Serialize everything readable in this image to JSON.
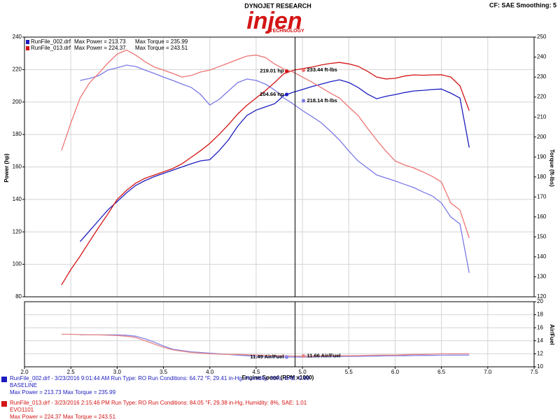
{
  "header": {
    "brand": "DYNOJET RESEARCH",
    "logo": "injen",
    "logo_sub": "TECHNOLOGY",
    "settings": "CF: SAE  Smoothing: 5"
  },
  "chart_data": [
    {
      "type": "line",
      "y_label": "Power (hp)",
      "y2_label": "Torque (ft-lbs)",
      "xlim": [
        2,
        7.5
      ],
      "ylim": [
        80,
        240
      ],
      "yticks": [
        80,
        100,
        120,
        140,
        160,
        180,
        200,
        220,
        240
      ],
      "y2lim": [
        120,
        250
      ],
      "y2ticks": [
        120,
        130,
        140,
        150,
        160,
        170,
        180,
        190,
        200,
        210,
        220,
        230,
        240,
        250
      ],
      "grid": true,
      "x": [
        2.4,
        2.5,
        2.6,
        2.7,
        2.8,
        2.9,
        3.0,
        3.1,
        3.2,
        3.3,
        3.4,
        3.5,
        3.6,
        3.7,
        3.8,
        3.9,
        4.0,
        4.1,
        4.2,
        4.3,
        4.4,
        4.5,
        4.6,
        4.7,
        4.8,
        4.9,
        5.0,
        5.1,
        5.2,
        5.3,
        5.4,
        5.5,
        5.6,
        5.7,
        5.8,
        5.9,
        6.0,
        6.1,
        6.2,
        6.3,
        6.4,
        6.5,
        6.6,
        6.7,
        6.8
      ],
      "series": [
        {
          "name": "RunFile_002.drf",
          "max_label": "Max Power = 213.73",
          "color": "#1c1cc0",
          "axis": "y",
          "values": [
            null,
            null,
            114,
            120.5,
            127,
            133.5,
            138.7,
            144,
            148.6,
            151.6,
            154,
            156,
            158,
            160,
            162,
            163.7,
            164.5,
            170,
            176.6,
            185,
            191.7,
            195,
            197,
            199,
            204,
            206,
            207.7,
            209.5,
            211,
            212.5,
            213.7,
            212,
            209,
            205,
            202,
            203.5,
            204.6,
            205.8,
            206.8,
            207.2,
            207.7,
            208,
            205.5,
            202.5,
            172
          ]
        },
        {
          "name": "RunFile_002.drf",
          "max_label": "Max Torque = 235.99",
          "color": "#7a7ae6",
          "axis": "y2",
          "values": [
            null,
            null,
            228.3,
            229.3,
            230.7,
            233.5,
            234.6,
            236,
            235.3,
            233.5,
            231.8,
            230,
            228.3,
            226.5,
            224.8,
            221.3,
            216,
            218.8,
            223,
            227.2,
            229,
            228.3,
            226.5,
            223.5,
            219.5,
            216.5,
            213.2,
            210.3,
            207.2,
            203,
            198.5,
            193,
            188,
            184.5,
            181,
            179.5,
            178,
            176.3,
            174.7,
            172.5,
            170.5,
            167,
            160,
            156.4,
            132
          ]
        },
        {
          "name": "RunFile_013.drf",
          "max_label": "Max Power = 224.37",
          "color": "#d41414",
          "axis": "y",
          "values": [
            87.3,
            96.8,
            105,
            114,
            122.7,
            131,
            140,
            145.5,
            150,
            153,
            155,
            157,
            159,
            162,
            166,
            170,
            174.5,
            180,
            186,
            192.5,
            198,
            202.5,
            207,
            212,
            217.5,
            219.5,
            220.6,
            221.5,
            222.8,
            223.8,
            224.4,
            223.5,
            222,
            219,
            215.4,
            214.2,
            214.6,
            216,
            216.7,
            216.5,
            216.7,
            216.8,
            215.4,
            210,
            194.7
          ]
        },
        {
          "name": "RunFile_013.drf",
          "max_label": "Max Torque = 243.51",
          "color": "#ee7474",
          "axis": "y2",
          "values": [
            193.2,
            207,
            219.5,
            227,
            231.8,
            237,
            241.5,
            243.5,
            241,
            237.7,
            235,
            233.5,
            231.8,
            230,
            230.8,
            232.5,
            233.5,
            235.2,
            237,
            238.8,
            240.5,
            241,
            239.8,
            236.5,
            234,
            232.5,
            230,
            227.5,
            224.8,
            222,
            219.5,
            215,
            210.8,
            204.5,
            198.5,
            193,
            188,
            186,
            184.5,
            182.5,
            180.3,
            177.5,
            167,
            163.4,
            149.4
          ]
        }
      ],
      "cursor": {
        "x": 4.92,
        "readouts": [
          {
            "label": "219.01 hp",
            "value": 219.01,
            "axis": "y",
            "color": "#d41414"
          },
          {
            "label": "233.44 ft-lbs",
            "value": 233.44,
            "axis": "y2",
            "color": "#ee7474"
          },
          {
            "label": "204.66 hp",
            "value": 204.66,
            "axis": "y",
            "color": "#1c1cc0"
          },
          {
            "label": "218.14 ft-lbs",
            "value": 218.14,
            "axis": "y2",
            "color": "#7a7ae6"
          }
        ]
      }
    },
    {
      "type": "line",
      "x_label": "Engine Speed (RPM x1000)",
      "y2_label": "Air/Fuel",
      "xlim": [
        2,
        7.5
      ],
      "xticks": [
        {
          "value": 2,
          "label": "2.0"
        },
        2.5,
        {
          "value": 3,
          "label": "3.0"
        },
        3.5,
        {
          "value": 4,
          "label": "4.0"
        },
        4.5,
        {
          "value": 5,
          "label": "5.0"
        },
        5.5,
        {
          "value": 6,
          "label": "6.0"
        },
        6.5,
        {
          "value": 7,
          "label": "7.0"
        },
        7.5
      ],
      "y2lim": [
        10,
        20
      ],
      "y2ticks": [
        10,
        12,
        14,
        16,
        18,
        20
      ],
      "grid": true,
      "x": [
        2.4,
        2.5,
        2.6,
        2.7,
        2.8,
        2.9,
        3.0,
        3.1,
        3.2,
        3.3,
        3.4,
        3.5,
        3.6,
        3.7,
        3.8,
        3.9,
        4.0,
        4.1,
        4.2,
        4.3,
        4.4,
        4.5,
        4.6,
        4.7,
        4.8,
        4.9,
        5.0,
        5.1,
        5.2,
        5.3,
        5.4,
        5.5,
        5.6,
        5.7,
        5.8,
        5.9,
        6.0,
        6.1,
        6.2,
        6.3,
        6.4,
        6.5,
        6.6,
        6.7,
        6.8
      ],
      "series": [
        {
          "name": "RunFile_002.drf",
          "color": "#8484e6",
          "axis": "y2",
          "values": [
            null,
            null,
            14.9,
            14.9,
            14.9,
            14.9,
            14.9,
            14.85,
            14.7,
            14.3,
            13.8,
            13.2,
            12.7,
            12.5,
            12.3,
            12.2,
            12.1,
            12.0,
            11.9,
            11.8,
            11.7,
            11.6,
            11.55,
            11.5,
            11.49,
            11.5,
            11.5,
            11.52,
            11.55,
            11.55,
            11.58,
            11.6,
            11.6,
            11.62,
            11.65,
            11.68,
            11.7,
            11.7,
            11.72,
            11.75,
            11.75,
            11.78,
            11.8,
            11.8,
            11.8
          ]
        },
        {
          "name": "RunFile_013.drf",
          "color": "#e68484",
          "axis": "y2",
          "values": [
            15.0,
            15.0,
            14.95,
            14.9,
            14.9,
            14.85,
            14.8,
            14.7,
            14.5,
            14.0,
            13.5,
            13.0,
            12.6,
            12.4,
            12.2,
            12.1,
            12.0,
            11.95,
            11.9,
            11.9,
            11.85,
            11.8,
            11.75,
            11.7,
            11.7,
            11.66,
            11.66,
            11.68,
            11.7,
            11.7,
            11.7,
            11.7,
            11.72,
            11.75,
            11.78,
            11.8,
            11.8,
            11.85,
            11.9,
            11.9,
            11.95,
            12.0,
            12.0,
            12.0,
            12.0
          ]
        }
      ],
      "cursor": {
        "x": 4.92,
        "readouts": [
          {
            "label": "11.49 Air/Fuel",
            "value": 11.49,
            "axis": "y2",
            "color": "#8484e6"
          },
          {
            "label": "11.66 Air/Fuel",
            "value": 11.66,
            "axis": "y2",
            "color": "#e68484"
          }
        ]
      }
    }
  ],
  "run_info": [
    {
      "line": "RunFile_002.drf - 3/23/2016 9:01:44 AM  Run Type: RO  Run Conditions: 64.72 °F, 29.41 in-Hg,  Humidity:  33%, SAE: 0.99",
      "note": "BASELINE",
      "maxes": "Max Power = 213.73  Max Torque = 235.99",
      "color": "#1c1cc0"
    },
    {
      "line": "RunFile_013.drf - 3/23/2016 2:15:46 PM  Run Type: RO  Run Conditions: 84.05 °F, 29.38 in-Hg,  Humidity:  8%, SAE: 1.01",
      "note": "EVO1101",
      "maxes": "Max Power = 224.37  Max Torque = 243.51",
      "color": "#d41414"
    }
  ]
}
